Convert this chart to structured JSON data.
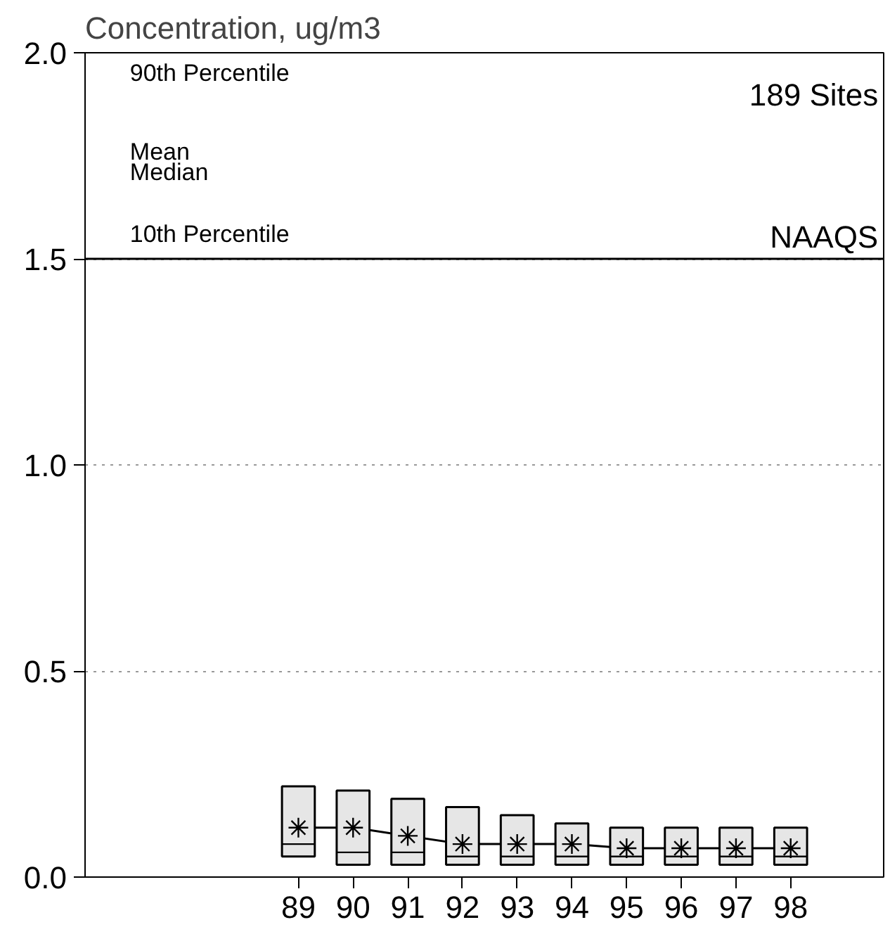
{
  "chart_data": {
    "type": "box",
    "ylabel": "Concentration, ug/m3",
    "categories": [
      "89",
      "90",
      "91",
      "92",
      "93",
      "94",
      "95",
      "96",
      "97",
      "98"
    ],
    "boxes": [
      {
        "low": 0.05,
        "q1": 0.05,
        "median": 0.08,
        "q3": 0.22,
        "high": 0.22,
        "mean": 0.12
      },
      {
        "low": 0.03,
        "q1": 0.03,
        "median": 0.06,
        "q3": 0.21,
        "high": 0.21,
        "mean": 0.12
      },
      {
        "low": 0.03,
        "q1": 0.03,
        "median": 0.06,
        "q3": 0.19,
        "high": 0.19,
        "mean": 0.1
      },
      {
        "low": 0.03,
        "q1": 0.03,
        "median": 0.05,
        "q3": 0.17,
        "high": 0.17,
        "mean": 0.08
      },
      {
        "low": 0.03,
        "q1": 0.03,
        "median": 0.05,
        "q3": 0.15,
        "high": 0.15,
        "mean": 0.08
      },
      {
        "low": 0.03,
        "q1": 0.03,
        "median": 0.05,
        "q3": 0.13,
        "high": 0.13,
        "mean": 0.08
      },
      {
        "low": 0.03,
        "q1": 0.03,
        "median": 0.05,
        "q3": 0.12,
        "high": 0.12,
        "mean": 0.07
      },
      {
        "low": 0.03,
        "q1": 0.03,
        "median": 0.05,
        "q3": 0.12,
        "high": 0.12,
        "mean": 0.07
      },
      {
        "low": 0.03,
        "q1": 0.03,
        "median": 0.05,
        "q3": 0.12,
        "high": 0.12,
        "mean": 0.07
      },
      {
        "low": 0.03,
        "q1": 0.03,
        "median": 0.05,
        "q3": 0.12,
        "high": 0.12,
        "mean": 0.07
      }
    ],
    "series": [
      {
        "type": "line",
        "color": "#000000",
        "values": [
          0.12,
          0.12,
          0.1,
          0.08,
          0.08,
          0.08,
          0.07,
          0.07,
          0.07,
          0.07
        ]
      }
    ],
    "ylim": [
      0,
      2.0
    ],
    "yticks": [
      {
        "value": 0,
        "label": "0.0"
      },
      {
        "value": 0.5,
        "label": "0.5"
      },
      {
        "value": 1.0,
        "label": "1.0"
      },
      {
        "value": 1.5,
        "label": "1.5"
      },
      {
        "value": 2.0,
        "label": "2.0"
      }
    ],
    "grid": "y",
    "line_style": "solid",
    "ref_lines": [
      {
        "axis": "y",
        "value": 1.5,
        "label": "NAAQS",
        "color": "#000000"
      }
    ],
    "annotations": [
      "189 Sites",
      "90th Percentile",
      "Mean",
      "Median",
      "10th Percentile"
    ]
  }
}
